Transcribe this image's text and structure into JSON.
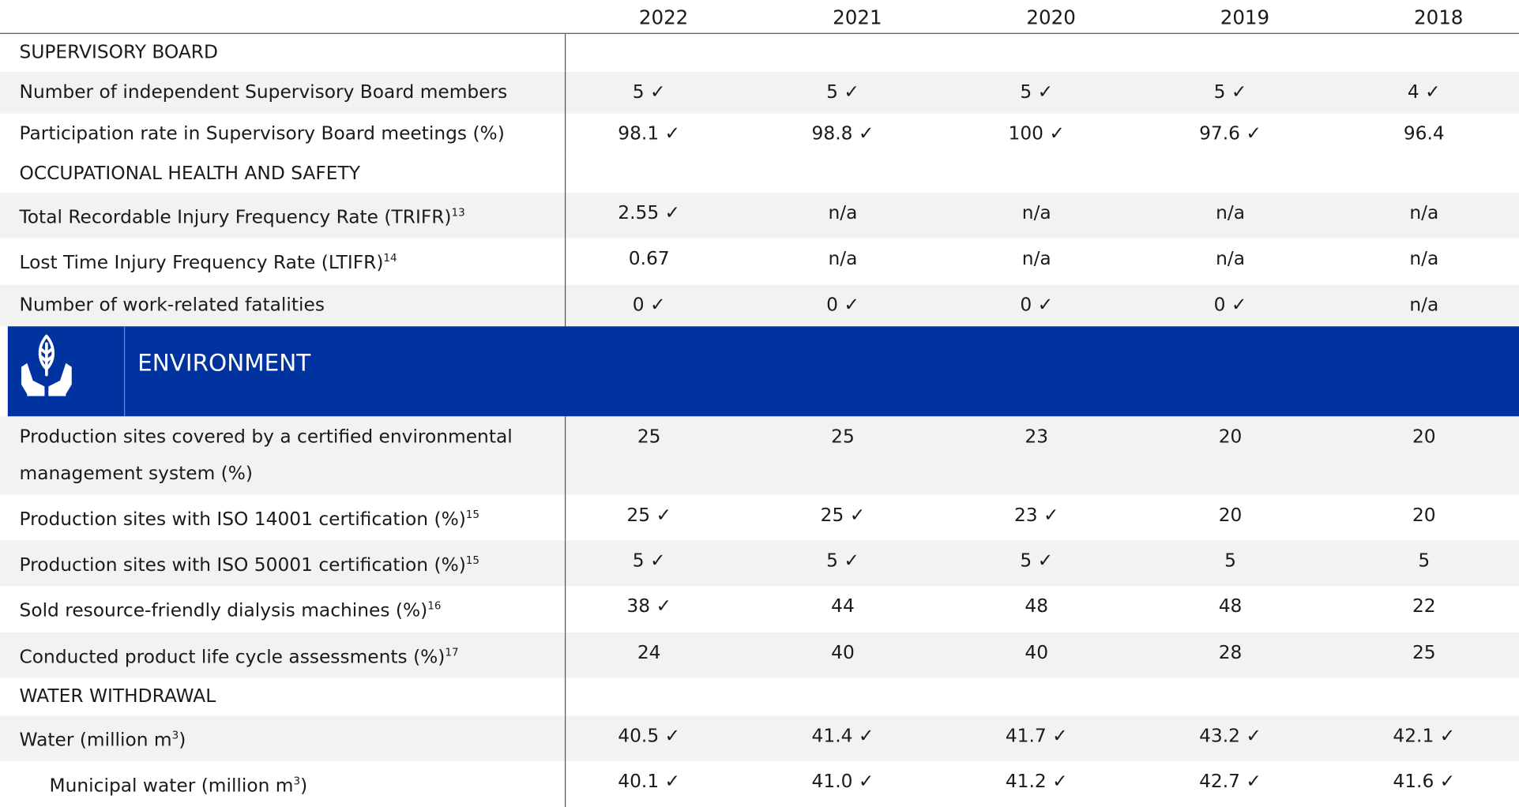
{
  "header": {
    "years": [
      "2022",
      "2021",
      "2020",
      "2019",
      "2018"
    ]
  },
  "table": {
    "rows": [
      {
        "section": "SUPERVISORY BOARD"
      },
      {
        "label": "Number of independent Supervisory Board members",
        "values": [
          "5 ✓",
          "5 ✓",
          "5 ✓",
          "5 ✓",
          "4 ✓"
        ]
      },
      {
        "label": "Participation rate in Supervisory Board meetings (%)",
        "values": [
          "98.1 ✓",
          "98.8 ✓",
          "100 ✓",
          "97.6 ✓",
          "96.4"
        ]
      },
      {
        "section": "OCCUPATIONAL HEALTH AND SAFETY"
      },
      {
        "label": "Total Recordable Injury Frequency Rate (TRIFR)",
        "sup": "13",
        "values": [
          "2.55 ✓",
          "n/a",
          "n/a",
          "n/a",
          "n/a"
        ]
      },
      {
        "label": "Lost Time Injury Frequency Rate (LTIFR)",
        "sup": "14",
        "values": [
          "0.67",
          "n/a",
          "n/a",
          "n/a",
          "n/a"
        ]
      },
      {
        "label": "Number of work-related fatalities",
        "values": [
          "0 ✓",
          "0 ✓",
          "0 ✓",
          "0 ✓",
          "n/a"
        ]
      },
      {
        "banner": "ENVIRONMENT"
      },
      {
        "label": "Production sites covered by a certified environmental management system (%)",
        "values": [
          "25",
          "25",
          "23",
          "20",
          "20"
        ]
      },
      {
        "label": "Production sites with ISO 14001 certification (%)",
        "sup": "15",
        "values": [
          "25 ✓",
          "25 ✓",
          "23 ✓",
          "20",
          "20"
        ]
      },
      {
        "label": "Production sites with ISO 50001 certification (%)",
        "sup": "15",
        "values": [
          "5 ✓",
          "5 ✓",
          "5 ✓",
          "5",
          "5"
        ]
      },
      {
        "label": "Sold resource-friendly dialysis machines (%)",
        "sup": "16",
        "values": [
          "38 ✓",
          "44",
          "48",
          "48",
          "22"
        ]
      },
      {
        "label": "Conducted product life cycle assessments (%)",
        "sup": "17",
        "values": [
          "24",
          "40",
          "40",
          "28",
          "25"
        ]
      },
      {
        "section": "WATER WITHDRAWAL"
      },
      {
        "label": "Water (million m",
        "sup": "3",
        "after": ")",
        "values": [
          "40.5 ✓",
          "41.4 ✓",
          "41.7 ✓",
          "43.2 ✓",
          "42.1 ✓"
        ]
      },
      {
        "label": "Municipal water (million m",
        "sup": "3",
        "after": ")",
        "indent": true,
        "values": [
          "40.1 ✓",
          "41.0 ✓",
          "41.2 ✓",
          "42.7 ✓",
          "41.6 ✓"
        ]
      }
    ]
  }
}
